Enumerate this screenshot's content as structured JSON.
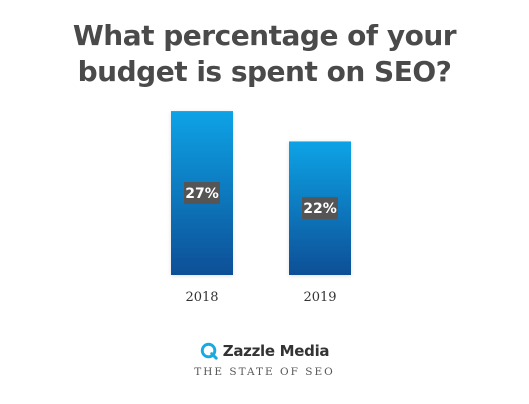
{
  "title": {
    "line1": "What percentage of your",
    "line2": "budget is spent on SEO?"
  },
  "chart_data": {
    "type": "bar",
    "title": "What percentage of your budget is spent on SEO?",
    "categories": [
      "2018",
      "2019"
    ],
    "values": [
      27,
      22
    ],
    "value_labels": [
      "27%",
      "22%"
    ],
    "unit": "%",
    "ylim": [
      0,
      28
    ],
    "grid": false,
    "legend": "none",
    "colors": {
      "bar_top": "#0aa3e6",
      "bar_bottom": "#0a4f96",
      "label_bg": "#555555",
      "label_text": "#ffffff"
    }
  },
  "logo": {
    "name": "Zazzle Media",
    "tagline": "THE STATE OF SEO",
    "icon": "zazzle-q-logo-icon",
    "icon_color": "#1aa9e0"
  }
}
